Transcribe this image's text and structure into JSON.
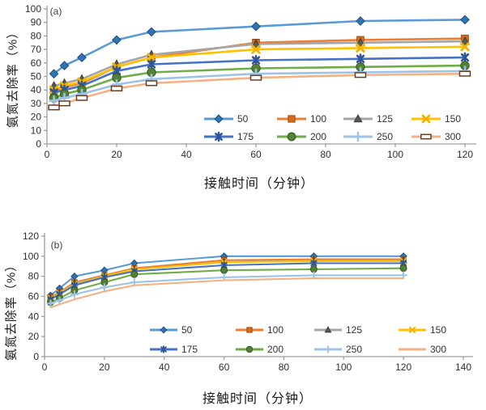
{
  "page": {
    "background": "#ffffff",
    "axis_color": "#9e9e9e",
    "tick_text_color": "#2f2f2f",
    "legend_text_color": "#333333"
  },
  "chart_data": [
    {
      "type": "line",
      "panel": "(a)",
      "title": "",
      "xlabel": "接触时间（分钟）",
      "ylabel": "氨氮去除率（%）",
      "x": [
        2,
        5,
        10,
        20,
        30,
        60,
        90,
        120
      ],
      "xlim": [
        0,
        120
      ],
      "ylim": [
        0,
        100
      ],
      "xticks": [
        0,
        20,
        40,
        60,
        80,
        100,
        120
      ],
      "yticks": [
        0,
        10,
        20,
        30,
        40,
        50,
        60,
        70,
        80,
        90,
        100
      ],
      "grid": false,
      "legend_position": "inside-bottom-right",
      "legend_rows": [
        [
          "50",
          "100",
          "125",
          "150"
        ],
        [
          "175",
          "200",
          "250",
          "300"
        ]
      ],
      "series": [
        {
          "name": "50",
          "color": "#5B9BD5",
          "marker": "diamond",
          "marker_color": "#2E75B6",
          "marker_edge": "#1F4E79",
          "values": [
            52,
            58,
            64,
            77,
            83,
            87,
            91,
            92
          ]
        },
        {
          "name": "100",
          "color": "#ED7D31",
          "marker": "square",
          "marker_color": "#DD6B17",
          "marker_edge": "#9A4A0F",
          "values": [
            39,
            42,
            45,
            57,
            64,
            75,
            77,
            78
          ]
        },
        {
          "name": "125",
          "color": "#A5A5A5",
          "marker": "triangle",
          "marker_color": "#5A5A5A",
          "marker_edge": "#3B3B3B",
          "values": [
            43,
            45,
            48,
            59,
            66,
            74,
            75,
            76
          ]
        },
        {
          "name": "150",
          "color": "#FFC000",
          "marker": "x",
          "marker_color": "#F0B400",
          "marker_edge": "#BF9000",
          "values": [
            40,
            43,
            46,
            57,
            64,
            70,
            71,
            72
          ]
        },
        {
          "name": "175",
          "color": "#4472C4",
          "marker": "asterisk",
          "marker_color": "#2F5597",
          "marker_edge": "#1F3864",
          "values": [
            38,
            40,
            43,
            54,
            59,
            62,
            63,
            64
          ]
        },
        {
          "name": "200",
          "color": "#70AD47",
          "marker": "circle",
          "marker_color": "#538135",
          "marker_edge": "#375623",
          "values": [
            34,
            37,
            40,
            49,
            53,
            56,
            57,
            58
          ]
        },
        {
          "name": "250",
          "color": "#9DC3E6",
          "marker": "plus",
          "marker_color": "#9DC3E6",
          "marker_edge": "#7FA8D0",
          "values": [
            32,
            34,
            37,
            44,
            48,
            52,
            53,
            54
          ]
        },
        {
          "name": "300",
          "color": "#F4B183",
          "marker": "dash",
          "marker_color": "#FFFFFF",
          "marker_edge": "#6B3B1E",
          "values": [
            27,
            30,
            34,
            41,
            45,
            49,
            51,
            52
          ]
        }
      ]
    },
    {
      "type": "line",
      "panel": "(b)",
      "title": "",
      "xlabel": "接触时间（分钟）",
      "ylabel": "氨氮去除率（%）",
      "x": [
        2,
        5,
        10,
        20,
        30,
        60,
        90,
        120
      ],
      "xlim": [
        0,
        140
      ],
      "ylim": [
        0,
        120
      ],
      "xticks": [
        0,
        20,
        40,
        60,
        80,
        100,
        120,
        140
      ],
      "yticks": [
        0,
        20,
        40,
        60,
        80,
        100,
        120
      ],
      "grid": false,
      "legend_position": "inside-bottom-right",
      "legend_rows": [
        [
          "50",
          "100",
          "125",
          "150"
        ],
        [
          "175",
          "200",
          "250",
          "300"
        ]
      ],
      "series": [
        {
          "name": "50",
          "color": "#5B9BD5",
          "marker": "diamond",
          "marker_color": "#2E75B6",
          "marker_edge": "#1F4E79",
          "values": [
            61,
            68,
            80,
            86,
            93,
            100,
            100,
            100
          ]
        },
        {
          "name": "100",
          "color": "#ED7D31",
          "marker": "square",
          "marker_color": "#DD6B17",
          "marker_edge": "#9A4A0F",
          "values": [
            59,
            64,
            74,
            81,
            88,
            96,
            97,
            97
          ]
        },
        {
          "name": "125",
          "color": "#A5A5A5",
          "marker": "triangle",
          "marker_color": "#5A5A5A",
          "marker_edge": "#3B3B3B",
          "values": [
            58,
            63,
            73,
            80,
            87,
            94,
            96,
            96
          ]
        },
        {
          "name": "150",
          "color": "#FFC000",
          "marker": "x",
          "marker_color": "#F0B400",
          "marker_edge": "#BF9000",
          "values": [
            58,
            63,
            72,
            80,
            87,
            94,
            95,
            95
          ]
        },
        {
          "name": "175",
          "color": "#4472C4",
          "marker": "asterisk",
          "marker_color": "#2F5597",
          "marker_edge": "#1F3864",
          "values": [
            57,
            62,
            71,
            79,
            85,
            91,
            93,
            93
          ]
        },
        {
          "name": "200",
          "color": "#70AD47",
          "marker": "circle",
          "marker_color": "#538135",
          "marker_edge": "#375623",
          "values": [
            54,
            58,
            66,
            74,
            82,
            86,
            87,
            88
          ]
        },
        {
          "name": "250",
          "color": "#9DC3E6",
          "marker": "plus",
          "marker_color": "#9DC3E6",
          "marker_edge": "#7FA8D0",
          "values": [
            53,
            56,
            62,
            69,
            74,
            79,
            81,
            81
          ]
        },
        {
          "name": "300",
          "color": "#F4B183",
          "marker": "none",
          "marker_color": "#F4B183",
          "marker_edge": "#C97B4A",
          "values": [
            49,
            52,
            57,
            65,
            71,
            76,
            78,
            78
          ]
        }
      ]
    }
  ]
}
